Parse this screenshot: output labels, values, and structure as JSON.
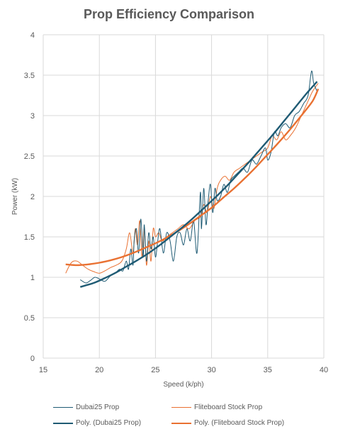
{
  "chart_data": {
    "type": "line",
    "title": "Prop Efficiency Comparison",
    "xlabel": "Speed (k/ph)",
    "ylabel": "Power (kW)",
    "xlim": [
      15,
      40
    ],
    "ylim": [
      0,
      4
    ],
    "x_ticks": [
      15,
      20,
      25,
      30,
      35,
      40
    ],
    "y_ticks": [
      0,
      0.5,
      1,
      1.5,
      2,
      2.5,
      3,
      3.5,
      4
    ],
    "x_tick_labels": [
      "15",
      "20",
      "25",
      "30",
      "35",
      "40"
    ],
    "y_tick_labels": [
      "0",
      "0.5",
      "1",
      "1.5",
      "2",
      "2.5",
      "3",
      "3.5",
      "4"
    ],
    "grid": "vertical and horizontal major gridlines",
    "legend_placement": "bottom",
    "series": [
      {
        "name": "Dubai25 Prop",
        "kind": "data",
        "color": "#1f5b74",
        "x": [
          18.3,
          18.8,
          19.2,
          19.6,
          20.0,
          20.5,
          21.0,
          21.4,
          21.8,
          22.1,
          22.4,
          22.6,
          22.8,
          23.0,
          23.1,
          23.3,
          23.5,
          23.7,
          23.9,
          24.0,
          24.2,
          24.4,
          24.6,
          24.8,
          25.0,
          25.2,
          25.4,
          25.7,
          26.0,
          26.3,
          26.6,
          26.9,
          27.2,
          27.5,
          27.8,
          28.1,
          28.4,
          28.7,
          29.0,
          29.1,
          29.3,
          29.5,
          29.7,
          29.9,
          30.1,
          30.3,
          30.5,
          30.8,
          31.1,
          31.4,
          31.7,
          32.0,
          32.4,
          32.8,
          33.2,
          33.6,
          34.0,
          34.4,
          34.8,
          35.0,
          35.3,
          35.6,
          35.9,
          36.2,
          36.6,
          37.0,
          37.4,
          37.8,
          38.2,
          38.6,
          38.9,
          39.1,
          39.4
        ],
        "y": [
          0.97,
          0.93,
          0.96,
          1.0,
          0.98,
          0.95,
          1.02,
          1.05,
          1.1,
          1.08,
          1.2,
          1.1,
          1.35,
          1.15,
          1.45,
          1.6,
          1.3,
          1.72,
          1.25,
          1.65,
          1.2,
          1.55,
          1.35,
          1.5,
          1.25,
          1.45,
          1.6,
          1.3,
          1.55,
          1.45,
          1.2,
          1.5,
          1.55,
          1.4,
          1.6,
          1.45,
          1.7,
          1.3,
          2.05,
          1.6,
          2.1,
          1.65,
          1.95,
          2.15,
          1.8,
          2.1,
          1.95,
          2.0,
          2.15,
          2.05,
          2.2,
          2.25,
          2.3,
          2.35,
          2.3,
          2.45,
          2.4,
          2.5,
          2.6,
          2.45,
          2.55,
          2.8,
          2.75,
          2.85,
          2.9,
          2.85,
          3.0,
          3.05,
          3.15,
          3.25,
          3.55,
          3.4,
          3.3
        ]
      },
      {
        "name": "Fliteboard Stock Prop",
        "kind": "data",
        "color": "#e97132",
        "x": [
          17.0,
          17.5,
          18.0,
          18.5,
          19.0,
          19.5,
          20.0,
          20.5,
          21.0,
          21.5,
          22.0,
          22.4,
          22.7,
          23.0,
          23.2,
          23.4,
          23.6,
          23.8,
          24.0,
          24.2,
          24.4,
          24.6,
          24.8,
          25.0,
          25.3,
          25.6,
          26.0,
          26.5,
          27.0,
          27.5,
          28.0,
          28.5,
          29.0,
          29.3,
          29.6,
          29.9,
          30.2,
          30.5,
          30.8,
          31.2,
          31.6,
          32.0,
          32.5,
          33.0,
          33.5,
          34.0,
          34.5,
          35.0,
          35.4,
          35.8,
          36.2,
          36.6,
          37.0,
          37.5,
          38.0,
          38.5,
          39.0,
          39.5
        ],
        "y": [
          1.05,
          1.18,
          1.2,
          1.15,
          1.1,
          1.07,
          1.05,
          1.08,
          1.12,
          1.15,
          1.2,
          1.35,
          1.55,
          1.3,
          1.6,
          1.4,
          1.7,
          1.25,
          1.6,
          1.15,
          1.45,
          1.2,
          1.6,
          1.5,
          1.55,
          1.45,
          1.5,
          1.55,
          1.6,
          1.65,
          1.6,
          1.7,
          1.75,
          1.9,
          1.8,
          2.0,
          1.85,
          2.1,
          2.2,
          2.25,
          2.2,
          2.3,
          2.35,
          2.4,
          2.45,
          2.5,
          2.55,
          2.6,
          2.75,
          2.7,
          2.8,
          2.7,
          2.75,
          2.85,
          3.0,
          3.15,
          3.3,
          3.4
        ]
      },
      {
        "name": "Poly. (Dubai25 Prop)",
        "kind": "trendline",
        "color": "#1f5b74",
        "x": [
          18.3,
          19.5,
          20.5,
          21.5,
          22.5,
          23.5,
          24.5,
          25.5,
          26.5,
          27.5,
          28.5,
          29.5,
          30.5,
          31.5,
          32.5,
          33.5,
          34.5,
          35.5,
          36.5,
          37.5,
          38.5,
          39.4
        ],
        "y": [
          0.88,
          0.93,
          0.99,
          1.06,
          1.14,
          1.22,
          1.31,
          1.41,
          1.52,
          1.63,
          1.75,
          1.88,
          2.01,
          2.15,
          2.3,
          2.45,
          2.61,
          2.77,
          2.94,
          3.11,
          3.28,
          3.42
        ]
      },
      {
        "name": "Poly. (Fliteboard Stock Prop)",
        "kind": "trendline",
        "color": "#e97132",
        "x": [
          17.0,
          18.0,
          19.0,
          20.0,
          21.0,
          22.0,
          23.0,
          24.0,
          25.0,
          26.0,
          27.0,
          28.0,
          29.0,
          30.0,
          31.0,
          32.0,
          33.0,
          34.0,
          35.0,
          36.0,
          37.0,
          38.0,
          39.0,
          39.5
        ],
        "y": [
          1.16,
          1.15,
          1.16,
          1.18,
          1.21,
          1.25,
          1.3,
          1.36,
          1.42,
          1.49,
          1.57,
          1.66,
          1.76,
          1.86,
          1.98,
          2.1,
          2.23,
          2.37,
          2.52,
          2.67,
          2.83,
          3.0,
          3.18,
          3.33
        ]
      }
    ]
  }
}
